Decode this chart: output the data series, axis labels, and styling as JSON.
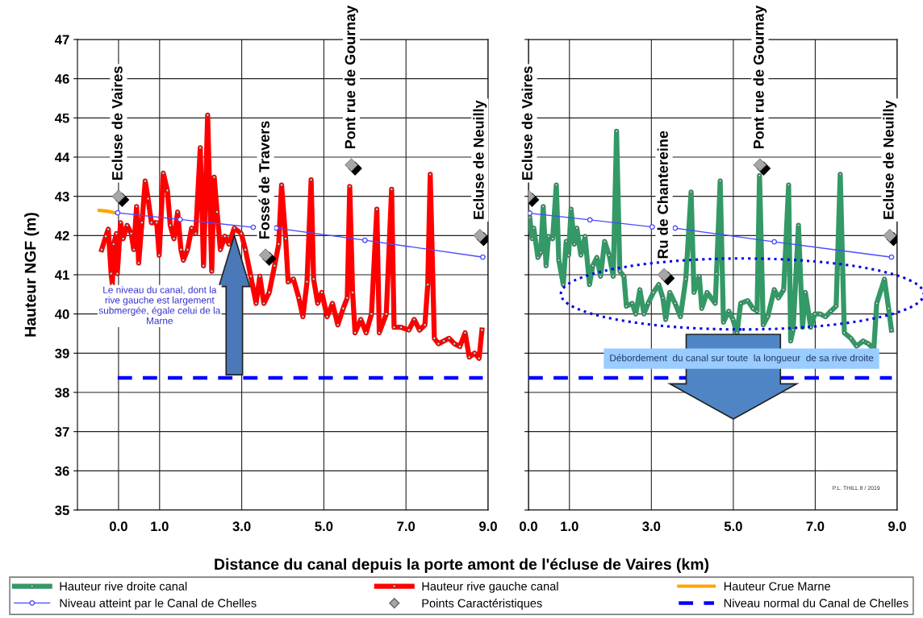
{
  "chart_data": [
    {
      "type": "line",
      "xlabel": "Distance du canal depuis la porte amont de l'écluse de Vaires (km)",
      "ylabel": "Hauteur NGF (m)",
      "xlim": [
        -1,
        9
      ],
      "xticks": [
        {
          "value": 0,
          "label": "0.0"
        },
        {
          "value": 1,
          "label": "1.0"
        },
        {
          "value": 3,
          "label": "3.0"
        },
        {
          "value": 5,
          "label": "5.0"
        },
        {
          "value": 7,
          "label": "7.0"
        },
        {
          "value": 9,
          "label": "9.0"
        }
      ],
      "ylim": [
        35,
        47
      ],
      "yticks": [
        35,
        36,
        37,
        38,
        39,
        40,
        41,
        42,
        43,
        44,
        45,
        46,
        47
      ],
      "grid": true,
      "legend": "bottom",
      "series": [
        {
          "name": "Hauteur rive gauche canal",
          "color": "#ff0000",
          "marker": "circle",
          "line_style": "solid",
          "x": [
            -0.41,
            -0.31,
            -0.25,
            -0.18,
            -0.15,
            -0.12,
            -0.05,
            -0.03,
            0.05,
            0.11,
            0.21,
            0.31,
            0.37,
            0.44,
            0.49,
            0.57,
            0.65,
            0.72,
            0.8,
            0.93,
            0.99,
            1.09,
            1.19,
            1.26,
            1.35,
            1.44,
            1.52,
            1.58,
            1.68,
            1.78,
            1.88,
            1.99,
            2.07,
            2.17,
            2.27,
            2.33,
            2.4,
            2.48,
            2.59,
            2.69,
            2.82,
            2.99,
            3.09,
            3.22,
            3.35,
            3.44,
            3.54,
            3.67,
            3.8,
            3.9,
            3.97,
            4.07,
            4.13,
            4.26,
            4.39,
            4.49,
            4.59,
            4.69,
            4.75,
            4.85,
            4.95,
            5.08,
            5.21,
            5.34,
            5.47,
            5.57,
            5.63,
            5.7,
            5.76,
            5.9,
            6.03,
            6.16,
            6.29,
            6.35,
            6.52,
            6.65,
            6.71,
            6.88,
            7.07,
            7.2,
            7.33,
            7.46,
            7.53,
            7.59,
            7.69,
            7.79,
            7.92,
            8.05,
            8.18,
            8.31,
            8.44,
            8.54,
            8.67,
            8.78,
            8.85
          ],
          "values": [
            41.64,
            41.98,
            42.16,
            41.03,
            40.75,
            41.78,
            42.05,
            41.03,
            42.33,
            41.92,
            42.26,
            42.05,
            41.64,
            42.74,
            41.3,
            42.33,
            43.39,
            42.94,
            42.33,
            42.33,
            41.5,
            43.59,
            43.15,
            42.26,
            41.92,
            42.6,
            41.64,
            41.37,
            41.64,
            42.19,
            42.05,
            44.24,
            41.23,
            45.07,
            41.09,
            43.49,
            42.6,
            41.64,
            41.98,
            41.78,
            42.19,
            42.05,
            41.64,
            40.96,
            40.27,
            40.96,
            40.27,
            40.55,
            41.23,
            41.78,
            43.29,
            41.92,
            40.82,
            40.89,
            40.41,
            39.93,
            40.82,
            43.42,
            40.89,
            40.27,
            40.55,
            39.93,
            40.27,
            39.72,
            40.14,
            40.41,
            43.25,
            40.55,
            39.52,
            39.86,
            39.52,
            40.0,
            42.67,
            39.52,
            40.0,
            43.18,
            39.66,
            39.66,
            39.59,
            39.86,
            39.59,
            39.72,
            40.75,
            43.56,
            39.38,
            39.24,
            39.31,
            39.38,
            39.24,
            39.17,
            39.52,
            38.9,
            39.0,
            38.87,
            39.59
          ]
        },
        {
          "name": "Hauteur Crue Marne",
          "color": "#ffa500",
          "line_style": "solid",
          "x": [
            -0.47,
            -0.25,
            -0.02
          ],
          "values": [
            42.64,
            42.62,
            42.56
          ]
        },
        {
          "name": "Niveau atteint par le Canal de Chelles",
          "color": "#4a4aff",
          "marker": "circle",
          "line_style": "solid",
          "x": [
            -0.02,
            1.5,
            3.28,
            3.3,
            3.84,
            6.0,
            8.87
          ],
          "values": [
            42.58,
            42.41,
            42.21,
            null,
            42.19,
            41.88,
            41.45
          ]
        },
        {
          "name": "Niveau normal du Canal de Chelles",
          "color": "#0000ff",
          "line_style": "dashed",
          "x": [
            -0.02,
            8.87
          ],
          "values": [
            38.37,
            38.37
          ]
        },
        {
          "name": "Points Caractéristiques",
          "type": "scatter",
          "color": "#a6a6a6",
          "marker": "diamond",
          "x": [
            0.0,
            3.58,
            5.67,
            8.8
          ],
          "values": [
            43.0,
            41.5,
            43.8,
            42.0
          ]
        }
      ],
      "annotations": [
        {
          "text": "Ecluse de Vaires",
          "x": 0.0,
          "y": 43.0
        },
        {
          "text": "Fossé de Travers",
          "x": 3.58,
          "y": 41.5
        },
        {
          "text": "Pont rue de Gournay",
          "x": 5.67,
          "y": 43.8
        },
        {
          "text": "Ecluse de Neuilly",
          "x": 8.8,
          "y": 42.0
        },
        "Le niveau du canal, dont la rive gauche est largement submergée, égale celui de la Marne"
      ]
    },
    {
      "type": "line",
      "xlim": [
        0,
        9
      ],
      "xticks": [
        {
          "value": 0,
          "label": "0.0"
        },
        {
          "value": 1,
          "label": "1.0"
        },
        {
          "value": 3,
          "label": "3.0"
        },
        {
          "value": 5,
          "label": "5.0"
        },
        {
          "value": 7,
          "label": "7.0"
        },
        {
          "value": 9,
          "label": "9.0"
        }
      ],
      "ylim": [
        35,
        47
      ],
      "yticks": [
        35,
        36,
        37,
        38,
        39,
        40,
        41,
        42,
        43,
        44,
        45,
        46,
        47
      ],
      "grid": true,
      "legend": "bottom",
      "tick_labels": "x",
      "series": [
        {
          "name": "Hauteur rive droite canal",
          "color": "#339966",
          "marker": "circle",
          "line_style": "solid",
          "x": [
            0.03,
            0.09,
            0.13,
            0.23,
            0.3,
            0.36,
            0.43,
            0.49,
            0.59,
            0.68,
            0.74,
            0.85,
            0.92,
            0.98,
            1.04,
            1.12,
            1.18,
            1.28,
            1.38,
            1.49,
            1.57,
            1.67,
            1.76,
            1.86,
            1.97,
            2.07,
            2.15,
            2.23,
            2.33,
            2.39,
            2.53,
            2.62,
            2.72,
            2.82,
            2.92,
            3.05,
            3.18,
            3.28,
            3.35,
            3.45,
            3.58,
            3.71,
            3.84,
            3.97,
            4.04,
            4.17,
            4.23,
            4.36,
            4.56,
            4.59,
            4.68,
            4.76,
            4.89,
            4.99,
            5.09,
            5.18,
            5.35,
            5.48,
            5.58,
            5.64,
            5.73,
            5.84,
            6.0,
            6.1,
            6.23,
            6.35,
            6.4,
            6.46,
            6.59,
            6.69,
            6.76,
            6.89,
            6.99,
            7.12,
            7.25,
            7.38,
            7.51,
            7.61,
            7.71,
            7.87,
            8.01,
            8.17,
            8.3,
            8.43,
            8.5,
            8.69,
            8.79,
            8.86
          ],
          "values": [
            42.46,
            41.92,
            42.19,
            41.44,
            41.57,
            42.74,
            41.23,
            41.98,
            41.92,
            43.29,
            41.37,
            40.75,
            41.85,
            41.5,
            42.67,
            41.78,
            42.19,
            41.5,
            41.98,
            40.75,
            41.23,
            41.44,
            40.96,
            41.85,
            41.5,
            40.96,
            44.66,
            41.09,
            40.96,
            40.2,
            40.27,
            40.0,
            40.62,
            40.0,
            40.27,
            40.55,
            40.75,
            40.41,
            39.86,
            40.55,
            40.27,
            39.93,
            40.89,
            43.11,
            40.55,
            40.96,
            40.14,
            40.55,
            40.27,
            41.03,
            43.39,
            39.79,
            40.07,
            39.86,
            39.52,
            40.27,
            40.34,
            40.14,
            40.07,
            43.53,
            39.72,
            39.93,
            40.62,
            40.41,
            40.62,
            43.29,
            39.31,
            39.59,
            42.26,
            39.66,
            40.55,
            39.66,
            40.0,
            40.0,
            39.93,
            40.07,
            40.2,
            43.56,
            39.52,
            39.38,
            39.18,
            39.31,
            39.24,
            39.11,
            40.27,
            40.89,
            40.14,
            39.59
          ]
        },
        {
          "name": "Niveau atteint par le Canal de Chelles",
          "color": "#4a4aff",
          "marker": "circle",
          "line_style": "solid",
          "x": [
            0.03,
            1.5,
            3.02,
            3.3,
            3.58,
            6.0,
            8.86
          ],
          "values": [
            42.57,
            42.4,
            42.22,
            null,
            42.19,
            41.84,
            41.45
          ]
        },
        {
          "name": "Niveau normal du Canal de Chelles",
          "color": "#0000ff",
          "line_style": "dashed",
          "x": [
            0.0,
            8.87
          ],
          "values": [
            38.37,
            38.37
          ]
        },
        {
          "name": "Points Caractéristiques",
          "type": "scatter",
          "color": "#a6a6a6",
          "marker": "diamond",
          "x": [
            0.0,
            3.31,
            5.65,
            8.82
          ],
          "values": [
            43.0,
            41.0,
            43.8,
            42.0
          ]
        }
      ],
      "annotations": [
        {
          "text": "Ecluse de Vaires",
          "x": 0.0,
          "y": 43.0
        },
        {
          "text": "Ru de Chantereine",
          "x": 3.31,
          "y": 41.0
        },
        {
          "text": "Pont rue de Gournay",
          "x": 5.65,
          "y": 43.8
        },
        {
          "text": "Ecluse de Neuilly",
          "x": 8.82,
          "y": 42.0
        },
        "Débordement  du canal sur toute  la longueur  de sa rive droite",
        "P.L. THILL 8 / 2019"
      ]
    }
  ]
}
